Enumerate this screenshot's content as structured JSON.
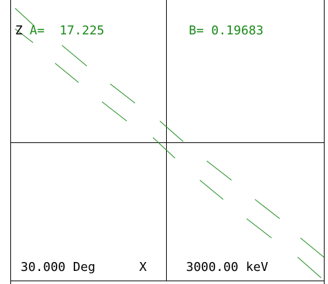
{
  "readout": {
    "axis_label": "Z",
    "a_text": "A=  17.225",
    "b_text": "B= 0.19683",
    "angle_text": "30.000 Deg",
    "axis_mode": "X",
    "energy_text": "3000.00 keV"
  },
  "colors": {
    "trace": "#1a8a1a",
    "text_value": "#1a8a1a",
    "frame": "#000000",
    "background": "#ffffff"
  }
}
